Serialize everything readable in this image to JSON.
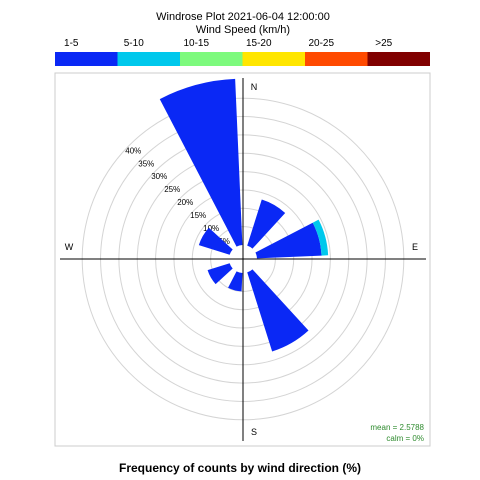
{
  "chart_data": {
    "type": "windrose",
    "title": "Windrose Plot  2021-06-04 12:00:00",
    "legend_title": "Wind Speed (km/h)",
    "caption": "Frequency of counts by wind direction (%)",
    "bins": [
      {
        "label": "1-5",
        "color": "#0a28f5"
      },
      {
        "label": "5-10",
        "color": "#00c8ec"
      },
      {
        "label": "10-15",
        "color": "#7dfa7d"
      },
      {
        "label": "15-20",
        "color": "#ffe600"
      },
      {
        "label": "20-25",
        "color": "#ff4a00"
      },
      {
        "label": ">25",
        "color": "#800000"
      }
    ],
    "rings": [
      5,
      10,
      15,
      20,
      25,
      30,
      35,
      40
    ],
    "ring_labels": [
      "5%",
      "10%",
      "15%",
      "20%",
      "25%",
      "30%",
      "35%",
      "40%"
    ],
    "directions": {
      "n": "N",
      "e": "E",
      "s": "S",
      "w": "W"
    },
    "sectors": [
      {
        "direction": 345,
        "values": [
          45.3,
          0,
          0,
          0,
          0,
          0
        ]
      },
      {
        "direction": 30,
        "values": [
          13.2,
          0,
          0,
          0,
          0,
          0
        ]
      },
      {
        "direction": 75,
        "values": [
          17.6,
          1.8,
          0,
          0,
          0,
          0
        ]
      },
      {
        "direction": 150,
        "values": [
          22.6,
          0,
          0,
          0,
          0,
          0
        ]
      },
      {
        "direction": 195,
        "values": [
          5.0,
          0,
          0,
          0,
          0,
          0
        ]
      },
      {
        "direction": 240,
        "values": [
          6.3,
          0,
          0,
          0,
          0,
          0
        ]
      },
      {
        "direction": 300,
        "values": [
          8.8,
          0,
          0,
          0,
          0,
          0
        ]
      }
    ],
    "mean_text": "mean = 2.5788",
    "calm_text": "calm = 0%"
  }
}
